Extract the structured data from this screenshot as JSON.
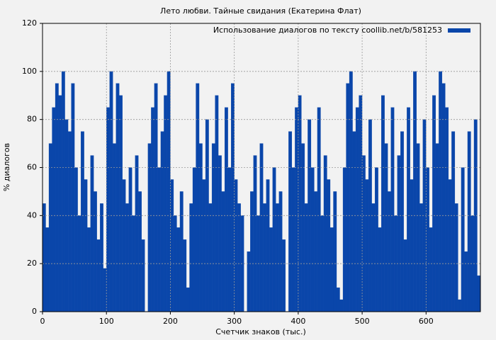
{
  "chart_data": {
    "type": "histogram",
    "title": "Лето любви. Тайные свидания (Екатерина Флат)",
    "x_label": "Счетчик знаков (тыс.)",
    "y_label": "% диалогов",
    "series": [
      {
        "name": "Использование диалогов по тексту coollib.net/b/581253",
        "color": "#0a46aa",
        "values": [
          45,
          35,
          70,
          85,
          95,
          90,
          100,
          80,
          75,
          95,
          60,
          40,
          75,
          55,
          35,
          65,
          50,
          30,
          45,
          18,
          85,
          100,
          70,
          95,
          90,
          55,
          45,
          60,
          40,
          65,
          50,
          30,
          0,
          70,
          85,
          95,
          60,
          75,
          90,
          100,
          55,
          40,
          35,
          50,
          30,
          10,
          45,
          60,
          95,
          70,
          55,
          80,
          45,
          70,
          90,
          65,
          50,
          85,
          60,
          95,
          55,
          45,
          40,
          0,
          25,
          50,
          65,
          40,
          70,
          45,
          55,
          35,
          60,
          45,
          50,
          30,
          0,
          75,
          60,
          85,
          90,
          70,
          45,
          80,
          60,
          50,
          85,
          40,
          65,
          55,
          35,
          50,
          10,
          5,
          60,
          95,
          100,
          75,
          85,
          90,
          65,
          55,
          80,
          45,
          60,
          35,
          90,
          70,
          50,
          85,
          40,
          65,
          75,
          30,
          85,
          55,
          100,
          70,
          45,
          80,
          60,
          35,
          90,
          70,
          100,
          95,
          85,
          55,
          75,
          45,
          5,
          60,
          25,
          75,
          40,
          80,
          15
        ]
      }
    ],
    "bins": [
      0,
      5,
      10,
      15,
      20,
      25,
      30,
      35,
      40,
      45,
      50,
      55,
      60,
      65,
      70,
      75,
      80,
      85,
      90,
      95,
      100,
      105,
      110,
      115,
      120,
      125,
      130,
      135,
      140,
      145,
      150,
      155,
      160,
      165,
      170,
      175,
      180,
      185,
      190,
      195,
      200,
      205,
      210,
      215,
      220,
      225,
      230,
      235,
      240,
      245,
      250,
      255,
      260,
      265,
      270,
      275,
      280,
      285,
      290,
      295,
      300,
      305,
      310,
      315,
      320,
      325,
      330,
      335,
      340,
      345,
      350,
      355,
      360,
      365,
      370,
      375,
      380,
      385,
      390,
      395,
      400,
      405,
      410,
      415,
      420,
      425,
      430,
      435,
      440,
      445,
      450,
      455,
      460,
      465,
      470,
      475,
      480,
      485,
      490,
      495,
      500,
      505,
      510,
      515,
      520,
      525,
      530,
      535,
      540,
      545,
      550,
      555,
      560,
      565,
      570,
      575,
      580,
      585,
      590,
      595,
      600,
      605,
      610,
      615,
      620,
      625,
      630,
      635,
      640,
      645,
      650,
      655,
      660,
      665,
      670,
      675,
      680,
      685
    ],
    "xlim": [
      0,
      685
    ],
    "ylim": [
      0,
      120
    ],
    "xticks": [
      0,
      100,
      200,
      300,
      400,
      500,
      600
    ],
    "yticks": [
      0,
      20,
      40,
      60,
      80,
      100,
      120
    ],
    "grid": true,
    "legend": "upper right"
  }
}
